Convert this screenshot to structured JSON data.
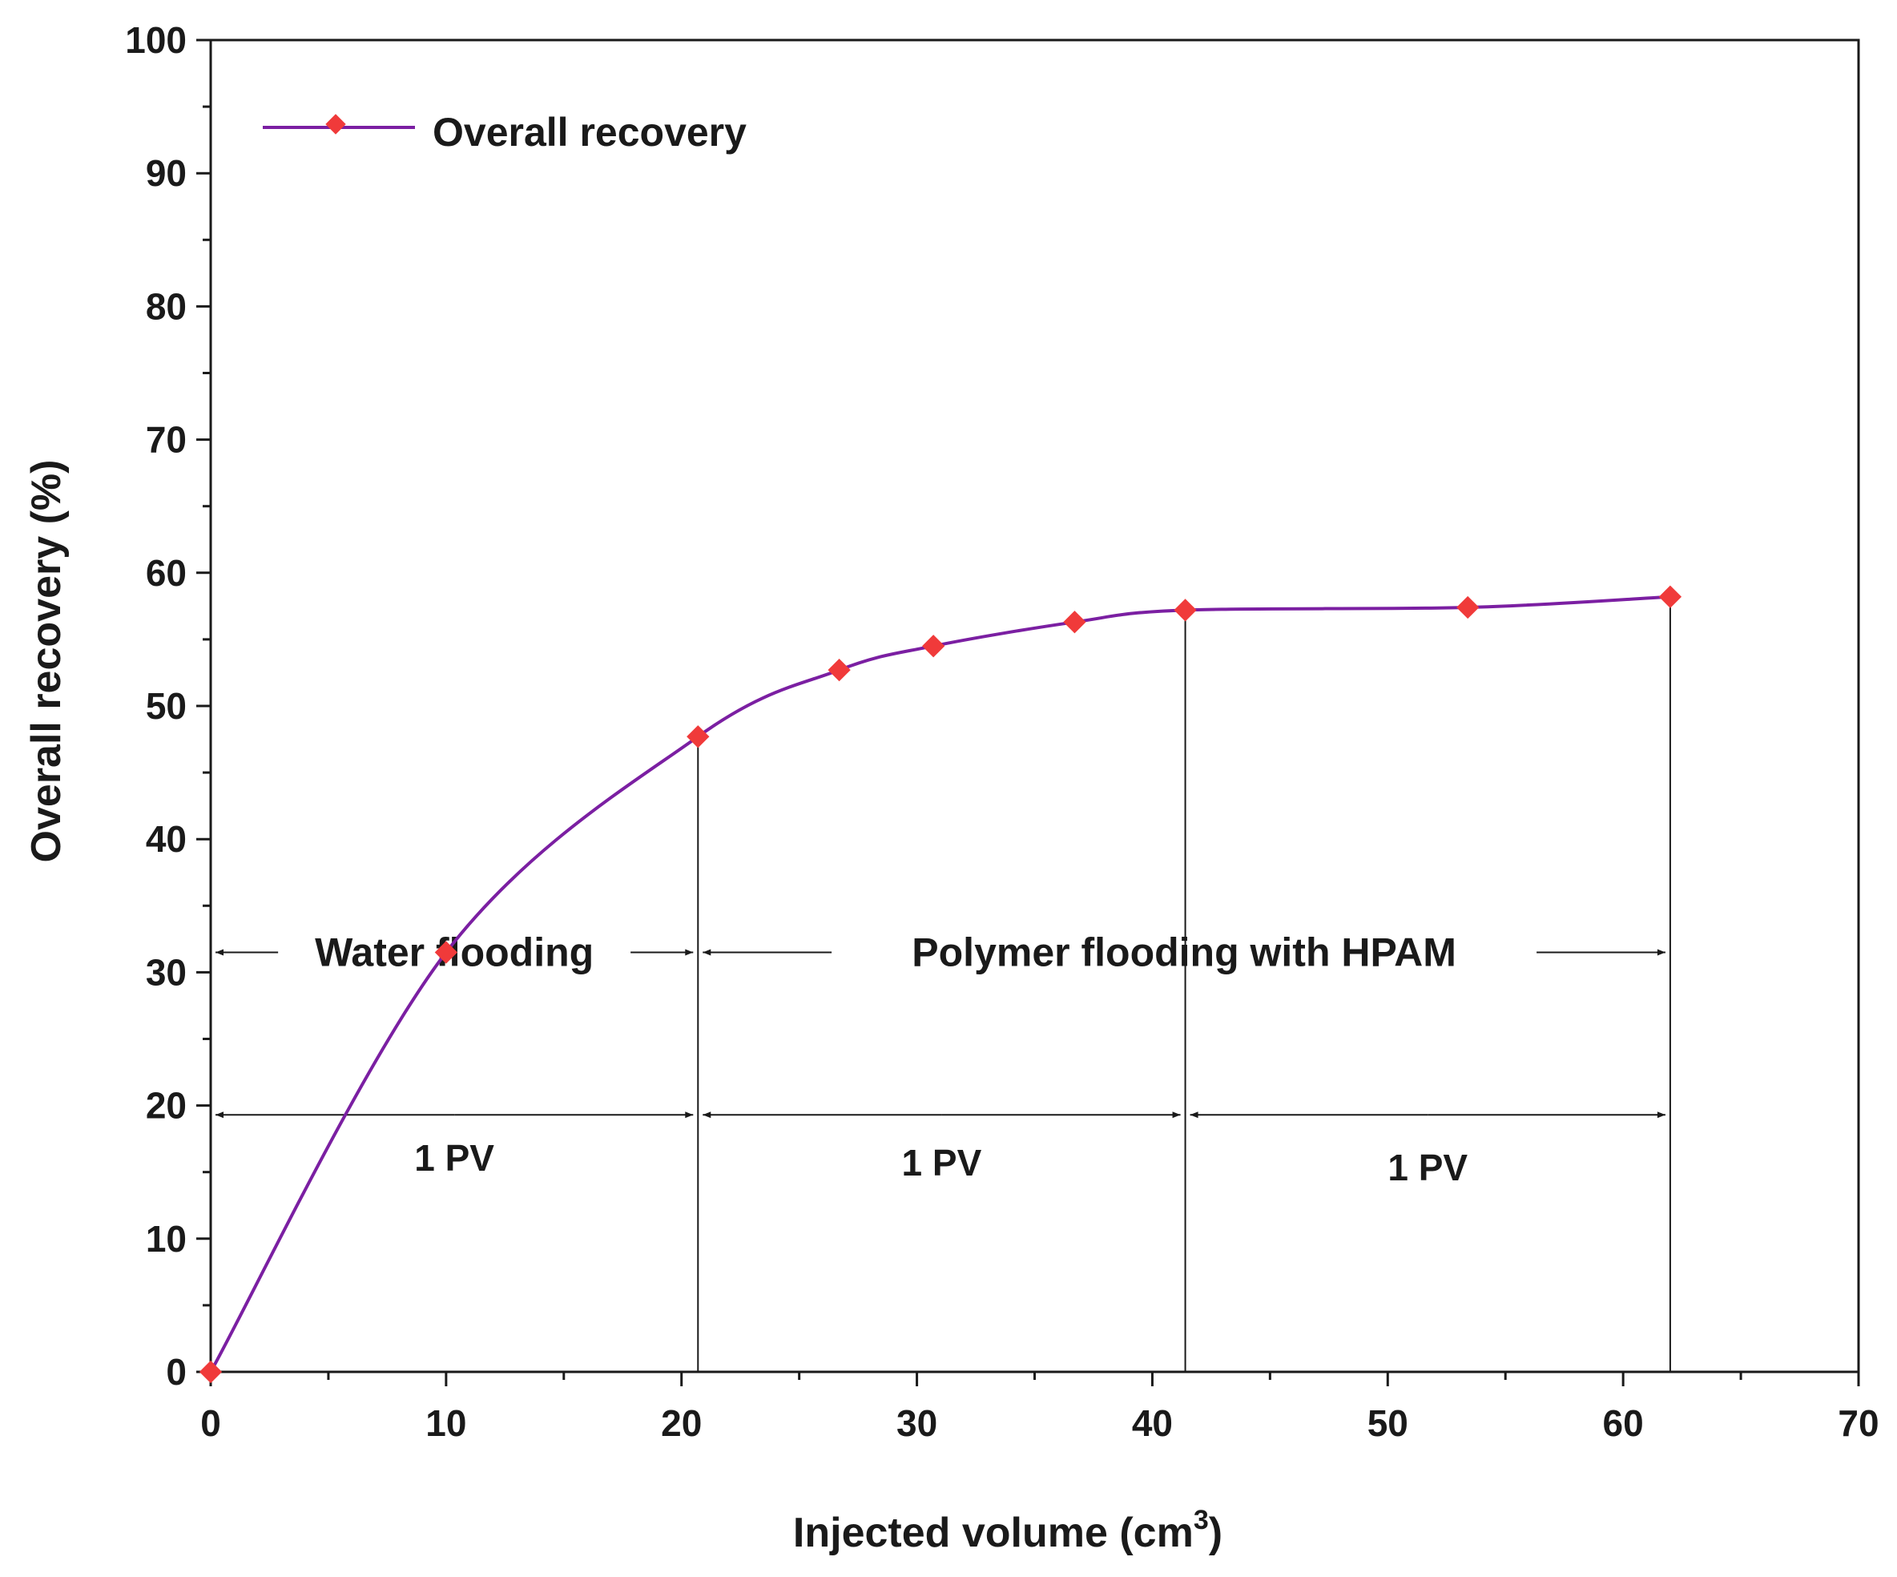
{
  "chart_data": {
    "type": "line",
    "title": "",
    "xlabel": "Injected volume (cm",
    "xlabel_sup": "3",
    "xlabel_close": ")",
    "ylabel": "Overall recovery (%)",
    "xlim": [
      0,
      70
    ],
    "ylim": [
      0,
      100
    ],
    "x_ticks": [
      0,
      10,
      20,
      30,
      40,
      50,
      60,
      70
    ],
    "y_ticks": [
      0,
      10,
      20,
      30,
      40,
      50,
      60,
      70,
      80,
      90,
      100
    ],
    "legend": {
      "position": "top-left",
      "entries": [
        "Overall recovery"
      ]
    },
    "series": [
      {
        "name": "Overall recovery",
        "x": [
          0,
          10,
          20.7,
          26.7,
          30.7,
          36.7,
          41.4,
          53.4,
          62
        ],
        "y": [
          0,
          31.5,
          47.7,
          52.7,
          54.5,
          56.3,
          57.2,
          57.4,
          58.2
        ]
      }
    ],
    "vertical_lines_x": [
      20.7,
      41.4,
      62
    ],
    "annotations": {
      "phases": [
        {
          "label": "Water flooding",
          "x_start": 0,
          "x_end": 20.7,
          "y": 31.5
        },
        {
          "label": "Polymer flooding with HPAM",
          "x_start": 20.7,
          "x_end": 62,
          "y": 31.5
        }
      ],
      "pore_volumes": [
        {
          "label": "1 PV",
          "x_start": 0,
          "x_end": 20.7,
          "y": 19.3
        },
        {
          "label": "1 PV",
          "x_start": 20.7,
          "x_end": 41.4,
          "y": 19.3
        },
        {
          "label": "1 PV",
          "x_start": 41.4,
          "x_end": 62,
          "y": 19.3
        }
      ]
    },
    "colors": {
      "line": "#7b1fa2",
      "marker": "#f03a3a",
      "axis": "#1a1a1a"
    }
  }
}
